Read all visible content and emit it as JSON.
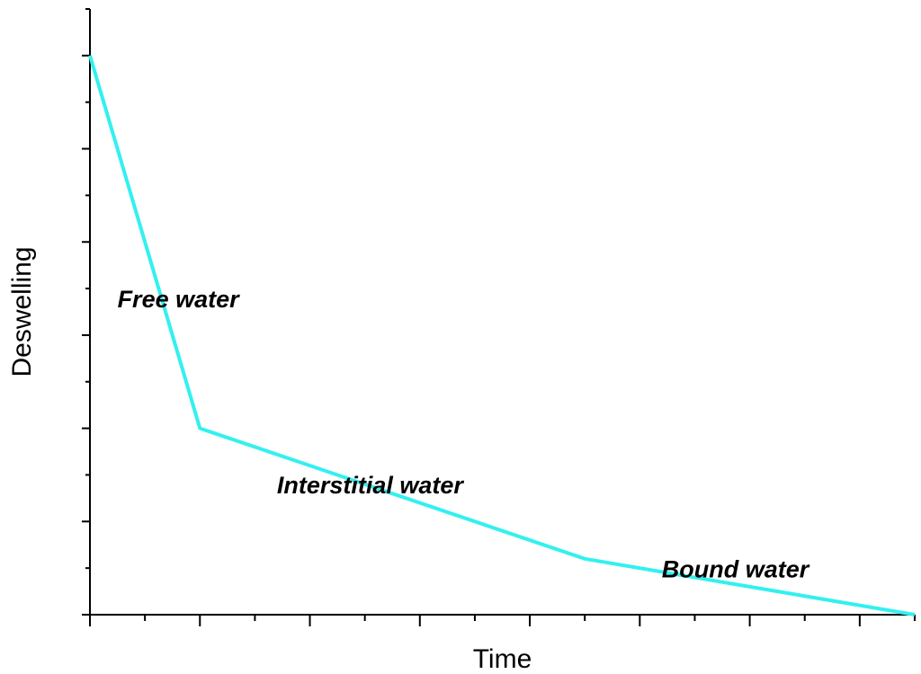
{
  "chart_data": {
    "type": "line",
    "title": "",
    "xlabel": "Time",
    "ylabel": "Deswelling",
    "xlim": [
      0,
      7.5
    ],
    "ylim": [
      0,
      6.5
    ],
    "x_major_ticks": [
      0,
      1,
      2,
      3,
      4,
      5,
      6,
      7
    ],
    "x_minor_step": 0.5,
    "y_major_ticks": [
      0,
      1,
      2,
      3,
      4,
      5,
      6
    ],
    "y_minor_step": 0.5,
    "series": [
      {
        "name": "Deswelling",
        "color": "#33f0f0",
        "x": [
          0,
          1,
          4.5,
          7.5
        ],
        "y": [
          6,
          2,
          0.6,
          0
        ]
      }
    ],
    "annotations": [
      {
        "text": "Free water",
        "x": 0.25,
        "y": 3.3
      },
      {
        "text": "Interstitial water",
        "x": 1.7,
        "y": 1.3
      },
      {
        "text": "Bound water",
        "x": 5.2,
        "y": 0.4
      }
    ]
  }
}
